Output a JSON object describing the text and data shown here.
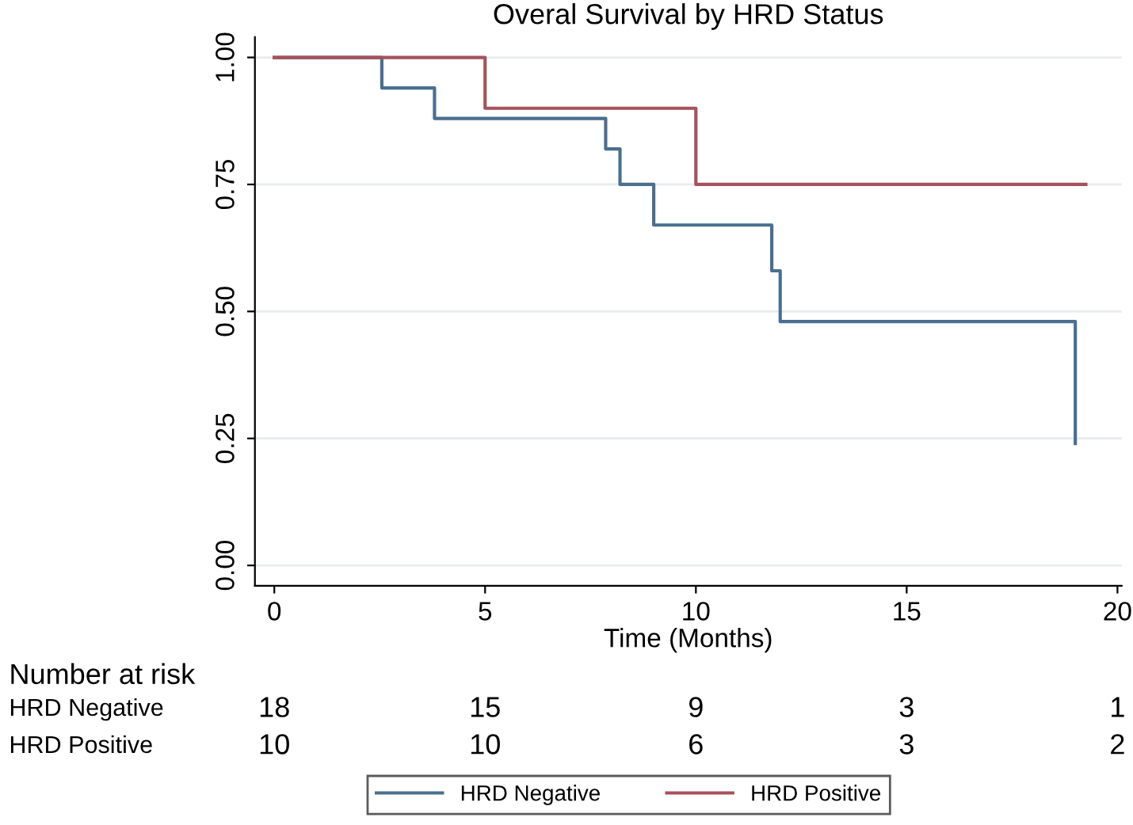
{
  "chart_data": {
    "type": "step",
    "title": "Overal Survival by HRD Status",
    "xlabel": "Time (Months)",
    "xlim": [
      -0.46,
      20.1
    ],
    "xticks": [
      0,
      5,
      10,
      15,
      20
    ],
    "ylim": [
      -0.04,
      1.04
    ],
    "yticks": [
      {
        "value": 0,
        "label": "0.00"
      },
      {
        "value": 0.25,
        "label": "0.25"
      },
      {
        "value": 0.5,
        "label": "0.50"
      },
      {
        "value": 0.75,
        "label": "0.75"
      },
      {
        "value": 1,
        "label": "1.00"
      }
    ],
    "grid": "y",
    "legend": "bottom",
    "line_style": "solid",
    "marker": "none",
    "series": [
      {
        "name": "HRD Negative",
        "color": "#4a6f8f",
        "x": [
          0,
          2.55,
          3.8,
          7.86,
          8.2,
          9.0,
          11.8,
          12.0,
          19.0
        ],
        "values": [
          1,
          0.94,
          0.88,
          0.82,
          0.75,
          0.67,
          0.58,
          0.48,
          0.24
        ]
      },
      {
        "name": "HRD Positive",
        "color": "#a5525c",
        "x": [
          0,
          5,
          10,
          19.25
        ],
        "values": [
          1,
          0.9,
          0.75,
          0.75
        ]
      }
    ],
    "annotations": [
      "Number at risk",
      "HRD Negative",
      "18",
      "15",
      "9",
      "3",
      "1",
      "HRD Positive",
      "10",
      "10",
      "6",
      "3",
      "2"
    ]
  }
}
